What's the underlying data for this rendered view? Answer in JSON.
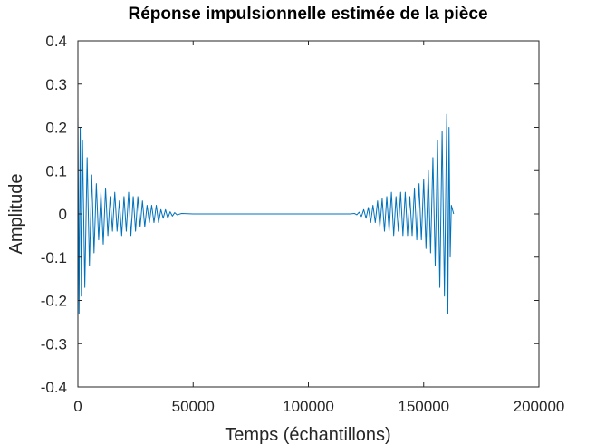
{
  "chart_data": {
    "type": "line",
    "title": "Réponse impulsionnelle estimée de la pièce",
    "xlabel": "Temps (échantillons)",
    "ylabel": "Amplitude",
    "xlim": [
      0,
      200000
    ],
    "ylim": [
      -0.4,
      0.4
    ],
    "xticks": [
      0,
      50000,
      100000,
      150000,
      200000
    ],
    "xtick_labels": [
      "0",
      "50000",
      "100000",
      "150000",
      "200000"
    ],
    "yticks": [
      0.4,
      0.3,
      0.2,
      0.1,
      0,
      -0.1,
      -0.2,
      -0.3,
      -0.4
    ],
    "ytick_labels": [
      "0.4",
      "0.3",
      "0.2",
      "0.1",
      "0",
      "-0.1",
      "-0.2",
      "-0.3",
      "-0.4"
    ],
    "grid": false,
    "line_color": "#0072BD",
    "series": [
      {
        "x": [
          0,
          500,
          1000,
          1500,
          2000,
          3000,
          4000,
          5000,
          6000,
          7000,
          8000,
          9000,
          10000,
          11000,
          12000,
          13000,
          14000,
          15000,
          16000,
          17000,
          18000,
          19000,
          20000,
          21000,
          22000,
          23000,
          24000,
          25000,
          26000,
          27000,
          28000,
          29000,
          30000,
          31000,
          32000,
          33000,
          34000,
          35000,
          36000,
          37000,
          38000,
          39000,
          40000,
          41000,
          42000,
          43000,
          45000,
          50000,
          60000,
          70000,
          80000,
          90000,
          100000,
          110000,
          118000,
          120000,
          121000,
          122000,
          123000,
          124000,
          125000,
          126000,
          127000,
          128000,
          129000,
          130000,
          131000,
          132000,
          133000,
          134000,
          135000,
          136000,
          137000,
          138000,
          139000,
          140000,
          141000,
          142000,
          143000,
          144000,
          145000,
          146000,
          147000,
          148000,
          149000,
          150000,
          151000,
          152000,
          153000,
          154000,
          155000,
          156000,
          157000,
          158000,
          159000,
          160000,
          160500,
          161000,
          161500,
          162000,
          163000
        ],
        "y": [
          0.23,
          -0.23,
          0.2,
          -0.19,
          0.17,
          -0.17,
          0.13,
          -0.12,
          0.09,
          -0.09,
          0.07,
          -0.06,
          0.05,
          -0.07,
          0.06,
          -0.05,
          0.04,
          -0.04,
          0.05,
          -0.04,
          0.03,
          -0.05,
          0.04,
          -0.04,
          0.05,
          -0.05,
          0.04,
          -0.04,
          0.04,
          -0.03,
          0.03,
          -0.03,
          0.02,
          -0.02,
          0.02,
          -0.02,
          0.02,
          -0.02,
          0.01,
          -0.01,
          0.01,
          -0.01,
          0.005,
          -0.005,
          0.003,
          -0.002,
          0.001,
          0,
          0,
          0,
          0,
          0,
          0,
          0,
          0,
          0.001,
          -0.002,
          0.004,
          -0.006,
          0.01,
          -0.01,
          0.015,
          -0.02,
          0.02,
          -0.02,
          0.03,
          -0.03,
          0.035,
          -0.04,
          0.04,
          -0.04,
          0.05,
          -0.05,
          0.04,
          -0.04,
          0.05,
          -0.05,
          0.05,
          -0.05,
          0.04,
          -0.05,
          0.06,
          -0.06,
          0.07,
          -0.06,
          0.08,
          -0.08,
          0.1,
          -0.09,
          0.13,
          -0.12,
          0.17,
          -0.17,
          0.19,
          -0.19,
          0.23,
          -0.23,
          0.2,
          -0.1,
          0.02,
          0
        ]
      }
    ]
  }
}
